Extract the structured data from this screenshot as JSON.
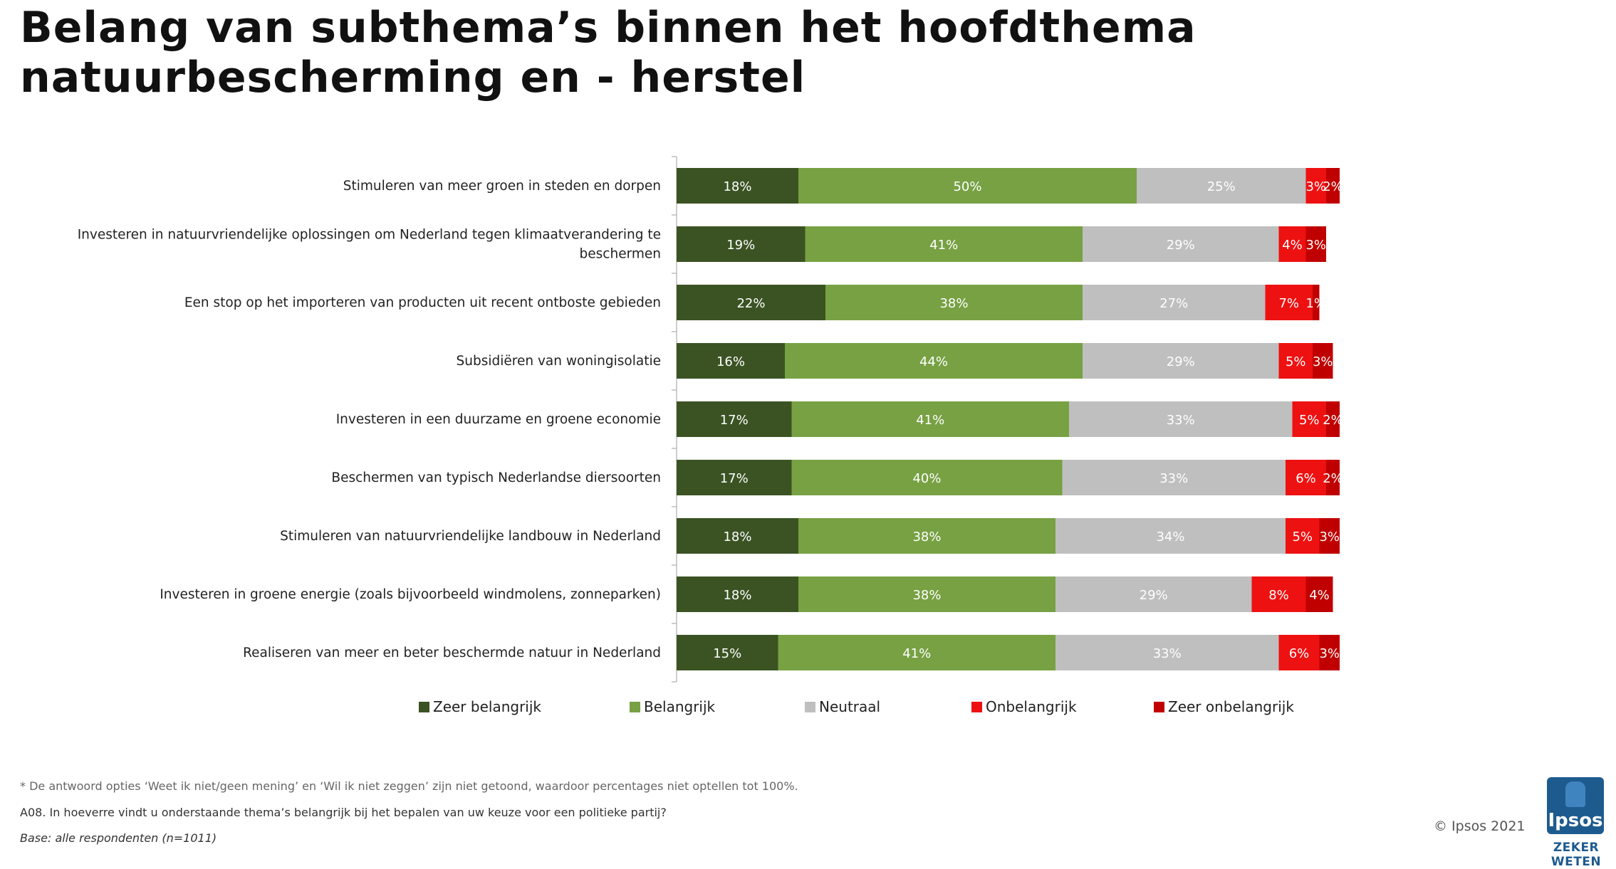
{
  "title": "Belang van subthema’s binnen het hoofdthema natuurbescherming en - herstel",
  "chart_data": {
    "type": "bar",
    "orientation": "horizontal-stacked-100",
    "categories": [
      "Stimuleren van meer groen in steden en dorpen",
      "Investeren in natuurvriendelijke oplossingen om Nederland tegen klimaatverandering te beschermen",
      "Een stop op het importeren van producten uit recent ontboste gebieden",
      "Subsidiëren van woningisolatie",
      "Investeren in een duurzame en groene economie",
      "Beschermen van typisch Nederlandse diersoorten",
      "Stimuleren van natuurvriendelijke landbouw in Nederland",
      "Investeren in groene energie (zoals bijvoorbeeld windmolens, zonneparken)",
      "Realiseren van meer en beter beschermde natuur in Nederland"
    ],
    "category_lines": [
      [
        "Stimuleren van meer groen in steden en dorpen"
      ],
      [
        "Investeren in natuurvriendelijke oplossingen om Nederland tegen klimaatverandering te",
        "beschermen"
      ],
      [
        "Een stop op het importeren van producten uit recent ontboste gebieden"
      ],
      [
        "Subsidiëren van woningisolatie"
      ],
      [
        "Investeren in een duurzame en groene economie"
      ],
      [
        "Beschermen van typisch Nederlandse diersoorten"
      ],
      [
        "Stimuleren van natuurvriendelijke landbouw in Nederland"
      ],
      [
        "Investeren in groene energie (zoals bijvoorbeeld windmolens, zonneparken)"
      ],
      [
        "Realiseren van meer en beter beschermde natuur in Nederland"
      ]
    ],
    "series": [
      {
        "name": "Zeer belangrijk",
        "color": "#3b5323",
        "label_color": "#ffffff",
        "values": [
          18,
          19,
          22,
          16,
          17,
          17,
          18,
          18,
          15
        ]
      },
      {
        "name": "Belangrijk",
        "color": "#77a143",
        "label_color": "#ffffff",
        "values": [
          50,
          41,
          38,
          44,
          41,
          40,
          38,
          38,
          41
        ]
      },
      {
        "name": "Neutraal",
        "color": "#bfbfbf",
        "label_color": "#ffffff",
        "values": [
          25,
          29,
          27,
          29,
          33,
          33,
          34,
          29,
          33
        ]
      },
      {
        "name": "Onbelangrijk",
        "color": "#ee1111",
        "label_color": "#ffffff",
        "values": [
          3,
          4,
          7,
          5,
          5,
          6,
          5,
          8,
          6
        ]
      },
      {
        "name": "Zeer onbelangrijk",
        "color": "#c00000",
        "label_color": "#ffffff",
        "values": [
          2,
          3,
          1,
          3,
          2,
          2,
          3,
          4,
          3
        ]
      }
    ],
    "value_suffix": "%",
    "legend_position": "bottom"
  },
  "footnotes": {
    "note": "* De antwoord opties ‘Weet ik niet/geen mening’ en ‘Wil ik niet zeggen’ zijn niet getoond, waardoor percentages niet optellen tot 100%.",
    "question": "A08. In hoeverre vindt u onderstaande thema’s belangrijk bij het bepalen van uw keuze voor een politieke partij?",
    "base": "Base: alle respondenten (n=1011)"
  },
  "branding": {
    "copyright": "© Ipsos 2021",
    "logo_text": "Ipsos",
    "tagline": "ZEKER WETEN"
  }
}
